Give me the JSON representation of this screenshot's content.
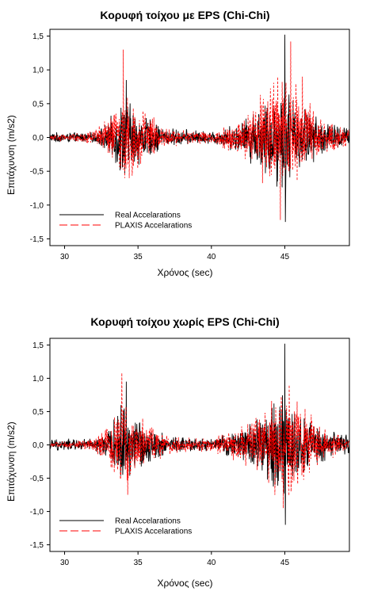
{
  "chart_data": [
    {
      "type": "line",
      "title": "Κορυφή τοίχου με EPS (Chi-Chi)",
      "xlabel": "Χρόνος (sec)",
      "ylabel": "Επιτάχυνση (m/s2)",
      "xlim": [
        29,
        49.4
      ],
      "ylim": [
        -1.6,
        1.6
      ],
      "xticks": [
        30,
        35,
        40,
        45
      ],
      "yticks": [
        -1.5,
        -1.0,
        -0.5,
        0.0,
        0.5,
        1.0,
        1.5
      ],
      "ytick_labels": [
        "-1,5",
        "-1,0",
        "-0,5",
        "0,0",
        "0,5",
        "1,0",
        "1,5"
      ],
      "legend": "bottom-left",
      "series": [
        {
          "name": "Real Accelarations",
          "color": "#000000",
          "style": "solid",
          "envelope": [
            [
              29,
              0.08
            ],
            [
              32,
              0.08
            ],
            [
              33,
              0.25
            ],
            [
              34,
              0.7
            ],
            [
              34.6,
              0.55
            ],
            [
              35.5,
              0.35
            ],
            [
              37,
              0.15
            ],
            [
              40,
              0.1
            ],
            [
              42,
              0.25
            ],
            [
              43.5,
              0.6
            ],
            [
              45,
              0.9
            ],
            [
              46,
              0.55
            ],
            [
              47.5,
              0.3
            ],
            [
              49.4,
              0.15
            ]
          ],
          "peaks": [
            [
              45.0,
              1.52
            ],
            [
              45.05,
              -1.25
            ],
            [
              34.2,
              0.85
            ],
            [
              44.5,
              -0.65
            ]
          ]
        },
        {
          "name": "PLAXIS Accelarations",
          "color": "#ff0000",
          "style": "dashed",
          "envelope": [
            [
              29,
              0.05
            ],
            [
              32,
              0.1
            ],
            [
              33,
              0.35
            ],
            [
              34,
              0.8
            ],
            [
              34.6,
              0.65
            ],
            [
              35.5,
              0.4
            ],
            [
              37,
              0.15
            ],
            [
              40,
              0.1
            ],
            [
              42,
              0.3
            ],
            [
              43.5,
              0.75
            ],
            [
              45,
              1.0
            ],
            [
              46,
              0.8
            ],
            [
              47.5,
              0.3
            ],
            [
              49.4,
              0.15
            ]
          ],
          "peaks": [
            [
              45.4,
              1.42
            ],
            [
              44.7,
              -1.22
            ],
            [
              34.0,
              1.3
            ],
            [
              34.4,
              -0.6
            ],
            [
              46.2,
              0.9
            ]
          ]
        }
      ]
    },
    {
      "type": "line",
      "title": "Κορυφή τοίχου χωρίς EPS (Chi-Chi)",
      "xlabel": "Χρόνος (sec)",
      "ylabel": "Επιτάχυνση (m/s2)",
      "xlim": [
        29,
        49.4
      ],
      "ylim": [
        -1.6,
        1.6
      ],
      "xticks": [
        30,
        35,
        40,
        45
      ],
      "yticks": [
        -1.5,
        -1.0,
        -0.5,
        0.0,
        0.5,
        1.0,
        1.5
      ],
      "ytick_labels": [
        "-1,5",
        "-1,0",
        "-0,5",
        "0,0",
        "0,5",
        "1,0",
        "1,5"
      ],
      "legend": "bottom-left",
      "series": [
        {
          "name": "Real Accelarations",
          "color": "#000000",
          "style": "solid",
          "envelope": [
            [
              29,
              0.1
            ],
            [
              32,
              0.1
            ],
            [
              33,
              0.25
            ],
            [
              34,
              0.7
            ],
            [
              34.6,
              0.55
            ],
            [
              35.5,
              0.35
            ],
            [
              37,
              0.15
            ],
            [
              40,
              0.1
            ],
            [
              42,
              0.25
            ],
            [
              43.5,
              0.6
            ],
            [
              45,
              0.9
            ],
            [
              46,
              0.55
            ],
            [
              47.5,
              0.3
            ],
            [
              49.4,
              0.15
            ]
          ],
          "peaks": [
            [
              45.0,
              1.52
            ],
            [
              45.05,
              -1.2
            ],
            [
              34.2,
              0.95
            ]
          ]
        },
        {
          "name": "PLAXIS Accelarations",
          "color": "#ff0000",
          "style": "dashed",
          "envelope": [
            [
              29,
              0.04
            ],
            [
              32,
              0.1
            ],
            [
              33,
              0.35
            ],
            [
              34,
              0.85
            ],
            [
              34.6,
              0.65
            ],
            [
              35.5,
              0.4
            ],
            [
              37,
              0.15
            ],
            [
              40,
              0.1
            ],
            [
              42,
              0.3
            ],
            [
              43.5,
              0.75
            ],
            [
              45,
              0.95
            ],
            [
              46,
              0.75
            ],
            [
              47.5,
              0.3
            ],
            [
              49.4,
              0.1
            ]
          ],
          "peaks": [
            [
              33.9,
              1.08
            ],
            [
              34.3,
              -0.75
            ],
            [
              44.9,
              -0.95
            ],
            [
              45.3,
              0.9
            ]
          ]
        }
      ]
    }
  ]
}
